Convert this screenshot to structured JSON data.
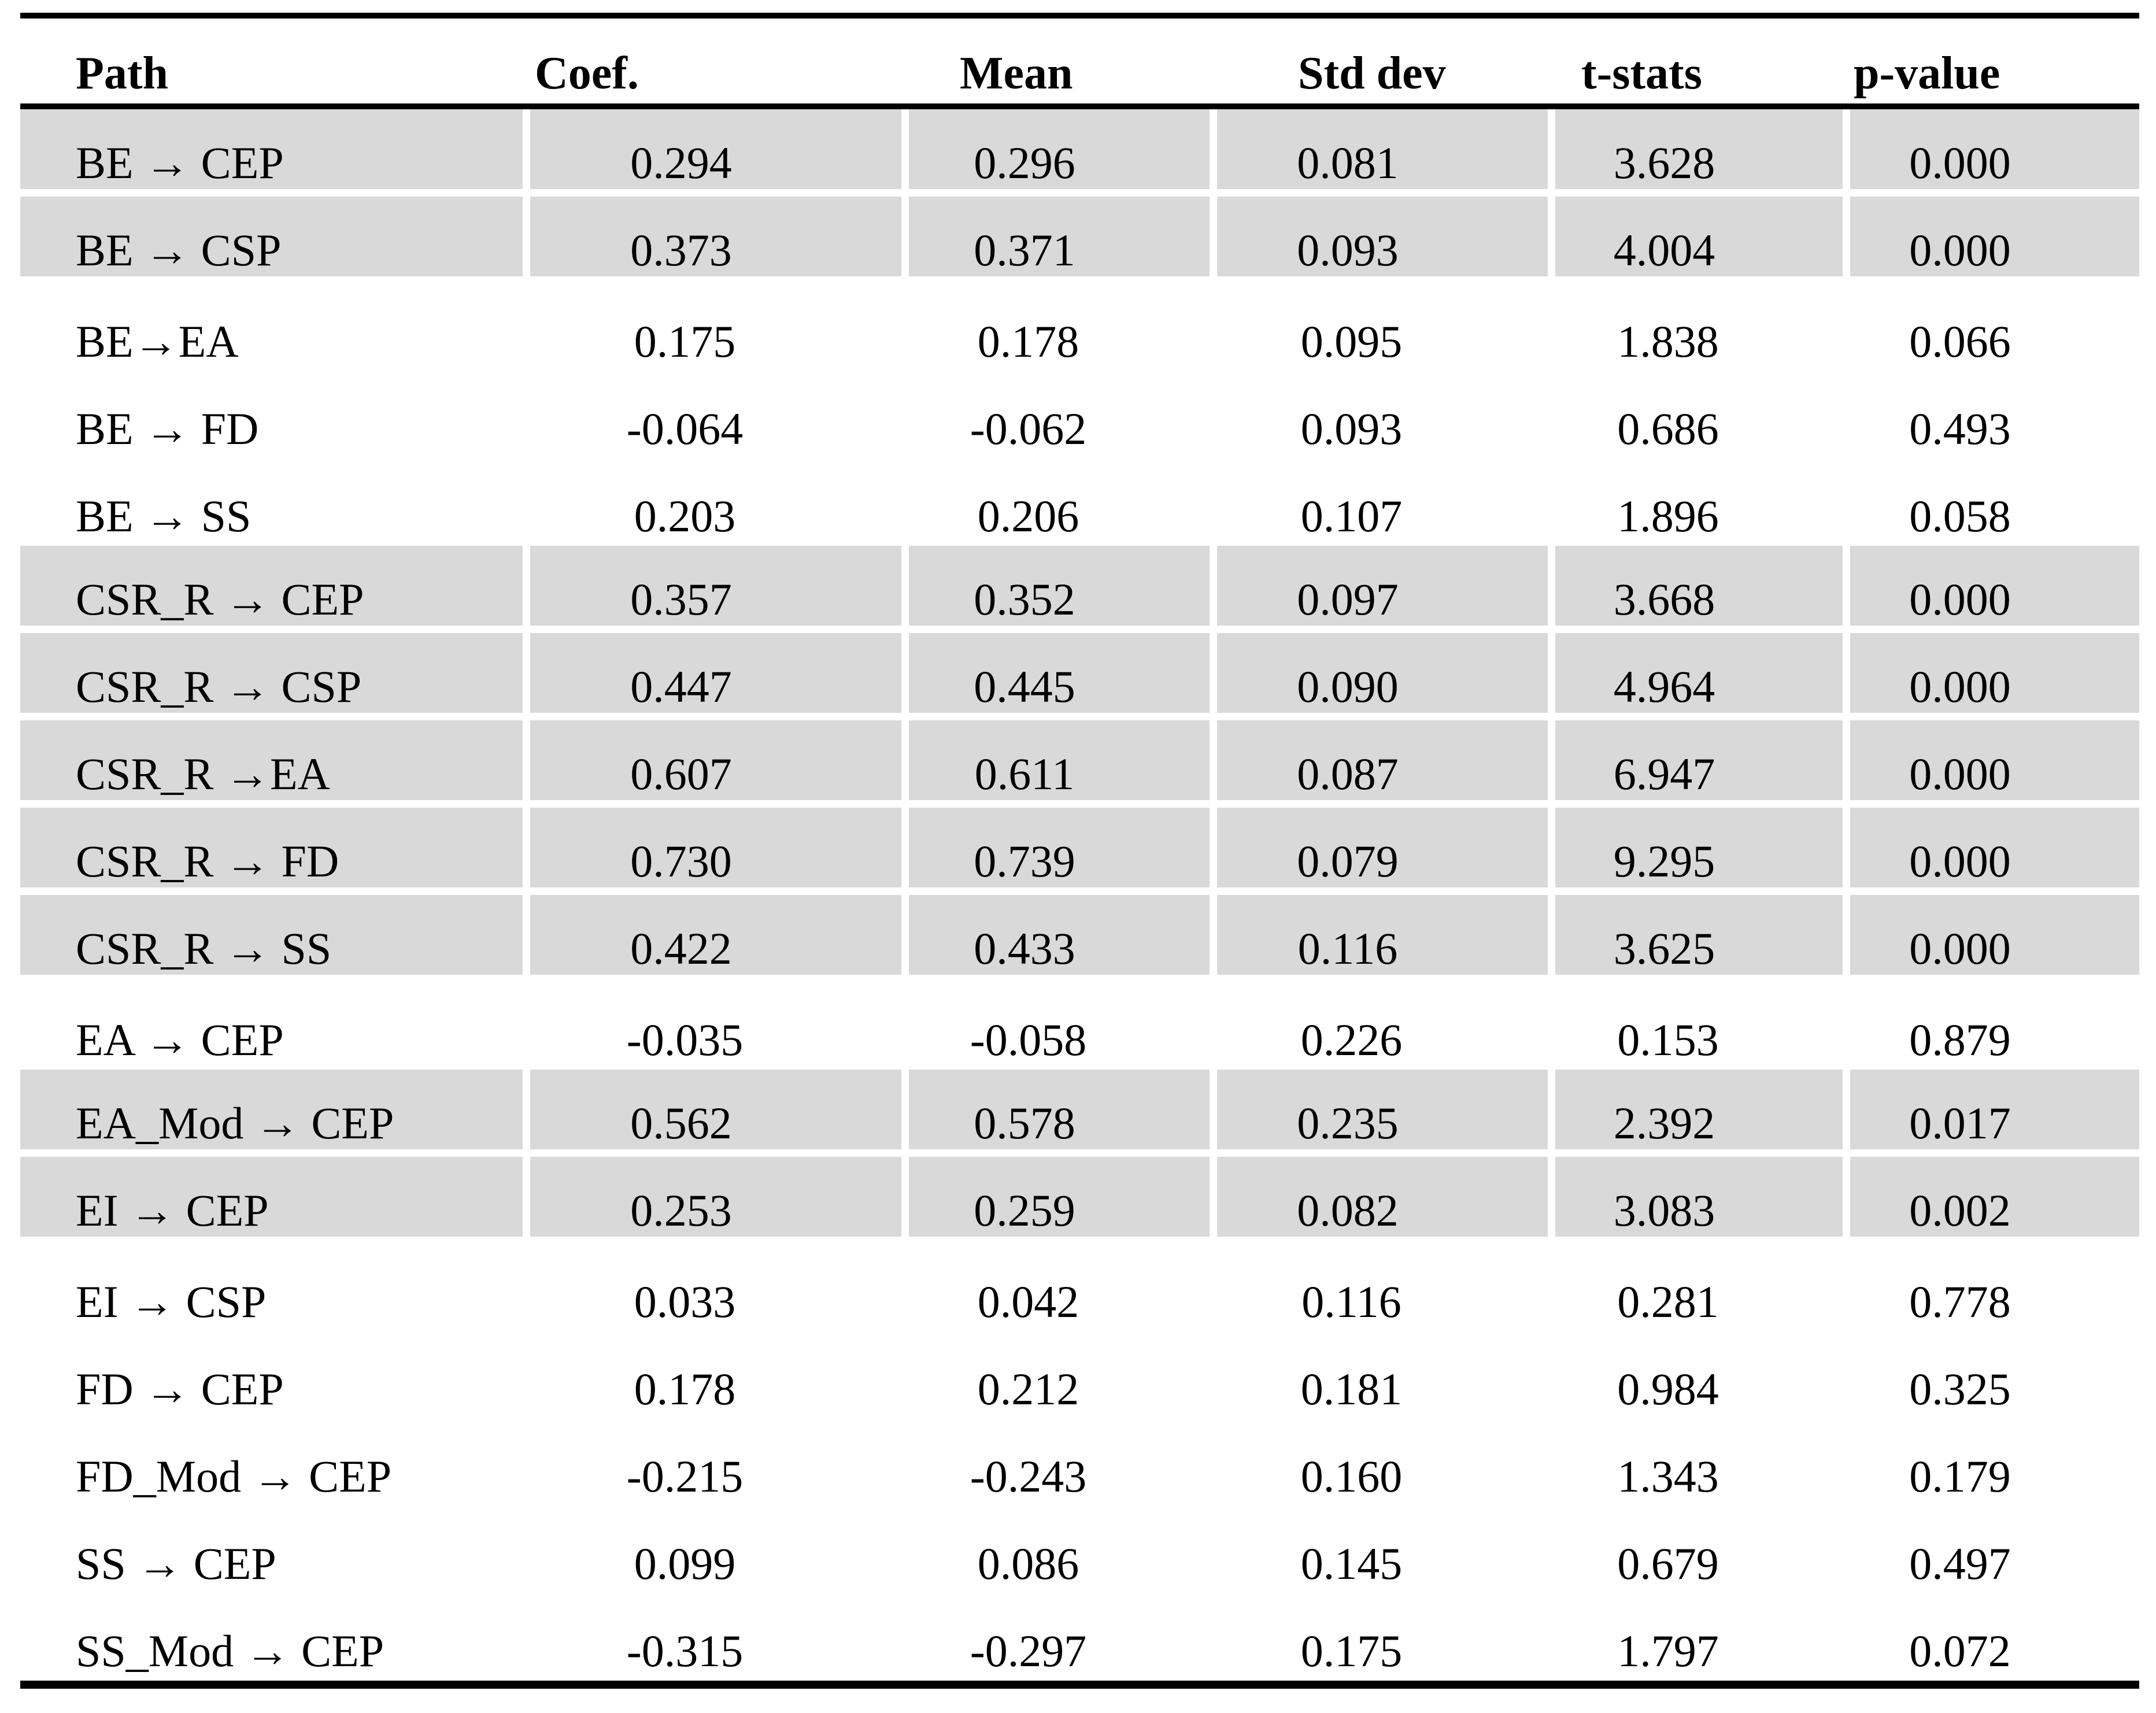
{
  "table": {
    "colors": {
      "row_shade": "#d9d9d9",
      "rule": "#000000",
      "background": "#ffffff"
    },
    "columns": [
      {
        "key": "path",
        "label": "Path"
      },
      {
        "key": "coef",
        "label": "Coef."
      },
      {
        "key": "mean",
        "label": "Mean"
      },
      {
        "key": "std_dev",
        "label": "Std dev"
      },
      {
        "key": "t_stats",
        "label": "t-stats"
      },
      {
        "key": "p_value",
        "label": "p-value"
      }
    ],
    "rows": [
      {
        "path": "BE → CEP",
        "coef": "0.294",
        "mean": "0.296",
        "std_dev": "0.081",
        "t_stats": "3.628",
        "p_value": "0.000",
        "shaded": true
      },
      {
        "path": "BE → CSP",
        "coef": "0.373",
        "mean": "0.371",
        "std_dev": "0.093",
        "t_stats": "4.004",
        "p_value": "0.000",
        "shaded": true
      },
      {
        "path": "BE→EA",
        "coef": "0.175",
        "mean": "0.178",
        "std_dev": "0.095",
        "t_stats": "1.838",
        "p_value": "0.066",
        "shaded": false
      },
      {
        "path": "BE → FD",
        "coef": "-0.064",
        "mean": "-0.062",
        "std_dev": "0.093",
        "t_stats": "0.686",
        "p_value": "0.493",
        "shaded": false
      },
      {
        "path": "BE → SS",
        "coef": "0.203",
        "mean": "0.206",
        "std_dev": "0.107",
        "t_stats": "1.896",
        "p_value": "0.058",
        "shaded": false
      },
      {
        "path": "CSR_R → CEP",
        "coef": "0.357",
        "mean": "0.352",
        "std_dev": "0.097",
        "t_stats": "3.668",
        "p_value": "0.000",
        "shaded": true
      },
      {
        "path": "CSR_R → CSP",
        "coef": "0.447",
        "mean": "0.445",
        "std_dev": "0.090",
        "t_stats": "4.964",
        "p_value": "0.000",
        "shaded": true
      },
      {
        "path": "CSR_R →EA",
        "coef": "0.607",
        "mean": "0.611",
        "std_dev": "0.087",
        "t_stats": "6.947",
        "p_value": "0.000",
        "shaded": true
      },
      {
        "path": "CSR_R → FD",
        "coef": "0.730",
        "mean": "0.739",
        "std_dev": "0.079",
        "t_stats": "9.295",
        "p_value": "0.000",
        "shaded": true
      },
      {
        "path": "CSR_R → SS",
        "coef": "0.422",
        "mean": "0.433",
        "std_dev": "0.116",
        "t_stats": "3.625",
        "p_value": "0.000",
        "shaded": true
      },
      {
        "path": "EA → CEP",
        "coef": "-0.035",
        "mean": "-0.058",
        "std_dev": "0.226",
        "t_stats": "0.153",
        "p_value": "0.879",
        "shaded": false
      },
      {
        "path": "EA_Mod → CEP",
        "coef": "0.562",
        "mean": "0.578",
        "std_dev": "0.235",
        "t_stats": "2.392",
        "p_value": "0.017",
        "shaded": true
      },
      {
        "path": "EI → CEP",
        "coef": "0.253",
        "mean": "0.259",
        "std_dev": "0.082",
        "t_stats": "3.083",
        "p_value": "0.002",
        "shaded": true
      },
      {
        "path": "EI → CSP",
        "coef": "0.033",
        "mean": "0.042",
        "std_dev": "0.116",
        "t_stats": "0.281",
        "p_value": "0.778",
        "shaded": false
      },
      {
        "path": "FD → CEP",
        "coef": "0.178",
        "mean": "0.212",
        "std_dev": "0.181",
        "t_stats": "0.984",
        "p_value": "0.325",
        "shaded": false
      },
      {
        "path": "FD_Mod → CEP",
        "coef": "-0.215",
        "mean": "-0.243",
        "std_dev": "0.160",
        "t_stats": "1.343",
        "p_value": "0.179",
        "shaded": false
      },
      {
        "path": "SS → CEP",
        "coef": "0.099",
        "mean": "0.086",
        "std_dev": "0.145",
        "t_stats": "0.679",
        "p_value": "0.497",
        "shaded": false
      },
      {
        "path": "SS_Mod → CEP",
        "coef": "-0.315",
        "mean": "-0.297",
        "std_dev": "0.175",
        "t_stats": "1.797",
        "p_value": "0.072",
        "shaded": false
      }
    ]
  }
}
